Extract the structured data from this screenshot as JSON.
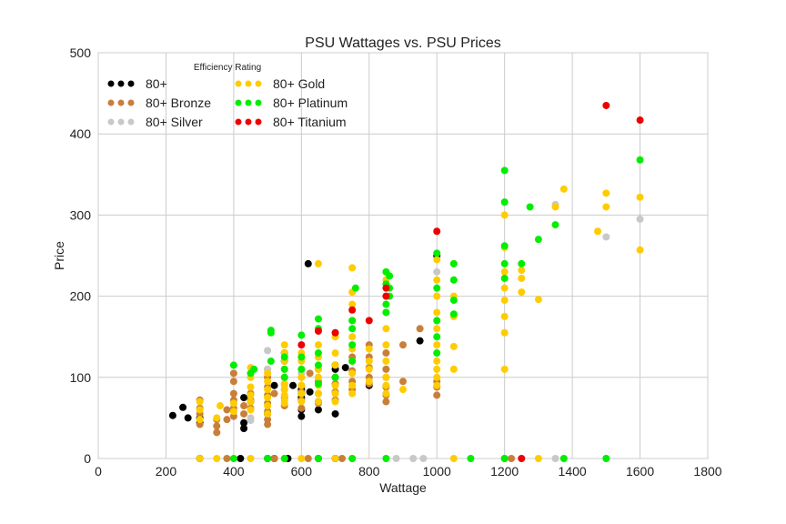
{
  "chart_data": {
    "type": "scatter",
    "title": "PSU Wattages vs. PSU Prices",
    "xlabel": "Wattage",
    "ylabel": "Price",
    "xlim": [
      0,
      1800
    ],
    "ylim": [
      0,
      500
    ],
    "xticks": [
      0,
      200,
      400,
      600,
      800,
      1000,
      1200,
      1400,
      1600,
      1800
    ],
    "yticks": [
      0,
      100,
      200,
      300,
      400,
      500
    ],
    "grid": true,
    "legend": {
      "title": "Efficiency Rating",
      "placement": "top-left"
    },
    "series": [
      {
        "name": "80+",
        "color": "#000000",
        "points": [
          [
            220,
            53
          ],
          [
            250,
            63
          ],
          [
            265,
            50
          ],
          [
            300,
            50
          ],
          [
            300,
            44
          ],
          [
            430,
            44
          ],
          [
            430,
            37
          ],
          [
            430,
            75
          ],
          [
            450,
            70
          ],
          [
            500,
            55
          ],
          [
            520,
            90
          ],
          [
            550,
            130
          ],
          [
            550,
            120
          ],
          [
            575,
            90
          ],
          [
            600,
            85
          ],
          [
            600,
            80
          ],
          [
            600,
            75
          ],
          [
            600,
            60
          ],
          [
            600,
            52
          ],
          [
            620,
            240
          ],
          [
            625,
            82
          ],
          [
            650,
            70
          ],
          [
            650,
            60
          ],
          [
            700,
            115
          ],
          [
            700,
            110
          ],
          [
            700,
            100
          ],
          [
            700,
            55
          ],
          [
            730,
            112
          ],
          [
            800,
            90
          ],
          [
            950,
            145
          ],
          [
            1000,
            250
          ],
          [
            300,
            0
          ],
          [
            420,
            0
          ],
          [
            500,
            0
          ],
          [
            520,
            0
          ],
          [
            560,
            0
          ],
          [
            650,
            0
          ],
          [
            700,
            0
          ]
        ]
      },
      {
        "name": "80+ Bronze",
        "color": "#c87f3a",
        "points": [
          [
            300,
            72
          ],
          [
            300,
            62
          ],
          [
            300,
            55
          ],
          [
            300,
            48
          ],
          [
            300,
            42
          ],
          [
            350,
            48
          ],
          [
            350,
            40
          ],
          [
            350,
            32
          ],
          [
            380,
            60
          ],
          [
            380,
            48
          ],
          [
            400,
            105
          ],
          [
            400,
            95
          ],
          [
            400,
            80
          ],
          [
            400,
            72
          ],
          [
            400,
            62
          ],
          [
            400,
            52
          ],
          [
            430,
            65
          ],
          [
            430,
            55
          ],
          [
            450,
            80
          ],
          [
            450,
            72
          ],
          [
            450,
            62
          ],
          [
            500,
            110
          ],
          [
            500,
            100
          ],
          [
            500,
            88
          ],
          [
            500,
            78
          ],
          [
            500,
            68
          ],
          [
            500,
            58
          ],
          [
            500,
            48
          ],
          [
            500,
            42
          ],
          [
            520,
            80
          ],
          [
            550,
            92
          ],
          [
            550,
            85
          ],
          [
            550,
            75
          ],
          [
            550,
            65
          ],
          [
            600,
            100
          ],
          [
            600,
            90
          ],
          [
            600,
            82
          ],
          [
            600,
            72
          ],
          [
            600,
            62
          ],
          [
            625,
            105
          ],
          [
            650,
            110
          ],
          [
            650,
            95
          ],
          [
            650,
            80
          ],
          [
            650,
            68
          ],
          [
            700,
            100
          ],
          [
            700,
            92
          ],
          [
            700,
            82
          ],
          [
            700,
            72
          ],
          [
            750,
            125
          ],
          [
            750,
            108
          ],
          [
            750,
            95
          ],
          [
            750,
            85
          ],
          [
            800,
            140
          ],
          [
            800,
            125
          ],
          [
            800,
            112
          ],
          [
            800,
            100
          ],
          [
            800,
            92
          ],
          [
            850,
            130
          ],
          [
            850,
            110
          ],
          [
            850,
            100
          ],
          [
            850,
            88
          ],
          [
            850,
            78
          ],
          [
            850,
            70
          ],
          [
            900,
            95
          ],
          [
            900,
            140
          ],
          [
            950,
            160
          ],
          [
            1000,
            95
          ],
          [
            1000,
            88
          ],
          [
            1000,
            78
          ],
          [
            1200,
            0
          ],
          [
            1220,
            0
          ],
          [
            380,
            0
          ],
          [
            520,
            0
          ],
          [
            620,
            0
          ],
          [
            720,
            0
          ]
        ]
      },
      {
        "name": "80+ Silver",
        "color": "#c8c8c8",
        "points": [
          [
            450,
            50
          ],
          [
            450,
            47
          ],
          [
            500,
            133
          ],
          [
            500,
            110
          ],
          [
            550,
            100
          ],
          [
            550,
            90
          ],
          [
            600,
            105
          ],
          [
            650,
            100
          ],
          [
            700,
            80
          ],
          [
            1000,
            230
          ],
          [
            1350,
            313
          ],
          [
            1500,
            273
          ],
          [
            1600,
            295
          ],
          [
            1350,
            0
          ],
          [
            1500,
            0
          ],
          [
            880,
            0
          ],
          [
            930,
            0
          ],
          [
            960,
            0
          ]
        ]
      },
      {
        "name": "80+ Gold",
        "color": "#ffcc00",
        "points": [
          [
            300,
            70
          ],
          [
            300,
            60
          ],
          [
            300,
            48
          ],
          [
            350,
            50
          ],
          [
            360,
            65
          ],
          [
            400,
            68
          ],
          [
            400,
            58
          ],
          [
            450,
            112
          ],
          [
            450,
            100
          ],
          [
            450,
            88
          ],
          [
            450,
            78
          ],
          [
            450,
            70
          ],
          [
            450,
            60
          ],
          [
            500,
            105
          ],
          [
            500,
            95
          ],
          [
            500,
            85
          ],
          [
            500,
            75
          ],
          [
            500,
            65
          ],
          [
            500,
            55
          ],
          [
            550,
            140
          ],
          [
            550,
            130
          ],
          [
            550,
            120
          ],
          [
            550,
            110
          ],
          [
            550,
            100
          ],
          [
            550,
            92
          ],
          [
            550,
            85
          ],
          [
            550,
            78
          ],
          [
            550,
            72
          ],
          [
            550,
            68
          ],
          [
            600,
            130
          ],
          [
            600,
            120
          ],
          [
            600,
            110
          ],
          [
            600,
            100
          ],
          [
            600,
            90
          ],
          [
            600,
            80
          ],
          [
            600,
            70
          ],
          [
            650,
            240
          ],
          [
            650,
            140
          ],
          [
            650,
            125
          ],
          [
            650,
            110
          ],
          [
            650,
            100
          ],
          [
            650,
            90
          ],
          [
            650,
            80
          ],
          [
            650,
            70
          ],
          [
            700,
            150
          ],
          [
            700,
            130
          ],
          [
            700,
            115
          ],
          [
            700,
            100
          ],
          [
            700,
            90
          ],
          [
            700,
            80
          ],
          [
            700,
            70
          ],
          [
            750,
            235
          ],
          [
            750,
            205
          ],
          [
            750,
            190
          ],
          [
            750,
            170
          ],
          [
            750,
            150
          ],
          [
            750,
            135
          ],
          [
            750,
            120
          ],
          [
            750,
            105
          ],
          [
            750,
            90
          ],
          [
            750,
            80
          ],
          [
            800,
            135
          ],
          [
            800,
            120
          ],
          [
            800,
            110
          ],
          [
            800,
            95
          ],
          [
            850,
            220
          ],
          [
            850,
            200
          ],
          [
            850,
            180
          ],
          [
            850,
            160
          ],
          [
            850,
            140
          ],
          [
            850,
            120
          ],
          [
            850,
            100
          ],
          [
            850,
            90
          ],
          [
            850,
            80
          ],
          [
            900,
            85
          ],
          [
            1000,
            245
          ],
          [
            1000,
            220
          ],
          [
            1000,
            200
          ],
          [
            1000,
            180
          ],
          [
            1000,
            160
          ],
          [
            1000,
            140
          ],
          [
            1000,
            120
          ],
          [
            1000,
            110
          ],
          [
            1000,
            100
          ],
          [
            1000,
            90
          ],
          [
            1050,
            240
          ],
          [
            1050,
            200
          ],
          [
            1050,
            175
          ],
          [
            1050,
            138
          ],
          [
            1050,
            110
          ],
          [
            1200,
            300
          ],
          [
            1200,
            260
          ],
          [
            1200,
            230
          ],
          [
            1200,
            210
          ],
          [
            1200,
            195
          ],
          [
            1200,
            175
          ],
          [
            1200,
            155
          ],
          [
            1200,
            110
          ],
          [
            1250,
            232
          ],
          [
            1250,
            222
          ],
          [
            1250,
            205
          ],
          [
            1300,
            196
          ],
          [
            1350,
            310
          ],
          [
            1375,
            332
          ],
          [
            1475,
            280
          ],
          [
            1500,
            327
          ],
          [
            1500,
            310
          ],
          [
            1600,
            322
          ],
          [
            1600,
            257
          ],
          [
            300,
            0
          ],
          [
            350,
            0
          ],
          [
            450,
            0
          ],
          [
            550,
            0
          ],
          [
            600,
            0
          ],
          [
            700,
            0
          ],
          [
            750,
            0
          ],
          [
            1050,
            0
          ],
          [
            1300,
            0
          ]
        ]
      },
      {
        "name": "80+ Platinum",
        "color": "#00ee00",
        "points": [
          [
            400,
            115
          ],
          [
            450,
            105
          ],
          [
            460,
            110
          ],
          [
            510,
            158
          ],
          [
            510,
            155
          ],
          [
            510,
            120
          ],
          [
            550,
            125
          ],
          [
            550,
            110
          ],
          [
            550,
            100
          ],
          [
            600,
            152
          ],
          [
            600,
            125
          ],
          [
            600,
            110
          ],
          [
            650,
            172
          ],
          [
            650,
            160
          ],
          [
            650,
            130
          ],
          [
            650,
            115
          ],
          [
            650,
            92
          ],
          [
            700,
            155
          ],
          [
            700,
            100
          ],
          [
            750,
            170
          ],
          [
            750,
            160
          ],
          [
            750,
            140
          ],
          [
            750,
            120
          ],
          [
            760,
            210
          ],
          [
            850,
            230
          ],
          [
            850,
            215
          ],
          [
            850,
            190
          ],
          [
            850,
            180
          ],
          [
            860,
            225
          ],
          [
            860,
            210
          ],
          [
            860,
            200
          ],
          [
            1000,
            253
          ],
          [
            1000,
            210
          ],
          [
            1000,
            170
          ],
          [
            1000,
            150
          ],
          [
            1000,
            130
          ],
          [
            1050,
            240
          ],
          [
            1050,
            220
          ],
          [
            1050,
            195
          ],
          [
            1050,
            178
          ],
          [
            1200,
            355
          ],
          [
            1200,
            316
          ],
          [
            1200,
            262
          ],
          [
            1200,
            240
          ],
          [
            1200,
            222
          ],
          [
            1250,
            240
          ],
          [
            1275,
            310
          ],
          [
            1300,
            270
          ],
          [
            1350,
            288
          ],
          [
            1600,
            368
          ],
          [
            400,
            0
          ],
          [
            500,
            0
          ],
          [
            550,
            0
          ],
          [
            650,
            0
          ],
          [
            750,
            0
          ],
          [
            850,
            0
          ],
          [
            1100,
            0
          ],
          [
            1200,
            0
          ],
          [
            1375,
            0
          ],
          [
            1500,
            0
          ]
        ]
      },
      {
        "name": "80+ Titanium",
        "color": "#ee0000",
        "points": [
          [
            600,
            140
          ],
          [
            650,
            157
          ],
          [
            700,
            155
          ],
          [
            750,
            183
          ],
          [
            800,
            170
          ],
          [
            850,
            210
          ],
          [
            850,
            200
          ],
          [
            1000,
            280
          ],
          [
            1500,
            435
          ],
          [
            1600,
            417
          ],
          [
            1250,
            0
          ]
        ]
      }
    ]
  }
}
